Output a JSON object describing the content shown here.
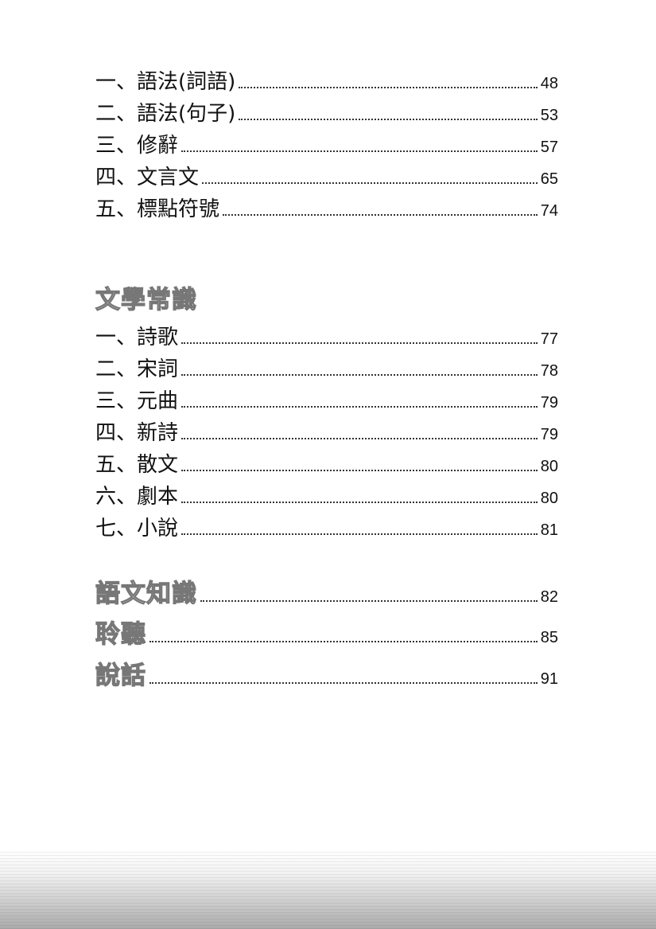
{
  "section1": {
    "items": [
      {
        "label": "一、語法(詞語)",
        "page": "48"
      },
      {
        "label": "二、語法(句子)",
        "page": "53"
      },
      {
        "label": "三、修辭",
        "page": "57"
      },
      {
        "label": "四、文言文",
        "page": "65"
      },
      {
        "label": "五、標點符號",
        "page": "74"
      }
    ]
  },
  "section2": {
    "heading": "文學常識",
    "items": [
      {
        "label": "一、詩歌",
        "page": "77"
      },
      {
        "label": "二、宋詞",
        "page": "78"
      },
      {
        "label": "三、元曲",
        "page": "79"
      },
      {
        "label": "四、新詩",
        "page": "79"
      },
      {
        "label": "五、散文",
        "page": "80"
      },
      {
        "label": "六、劇本",
        "page": "80"
      },
      {
        "label": "七、小說",
        "page": "81"
      }
    ]
  },
  "section3": {
    "items": [
      {
        "label": "語文知識",
        "page": "82"
      },
      {
        "label": "聆聽",
        "page": "85"
      },
      {
        "label": "說話",
        "page": "91"
      }
    ]
  }
}
